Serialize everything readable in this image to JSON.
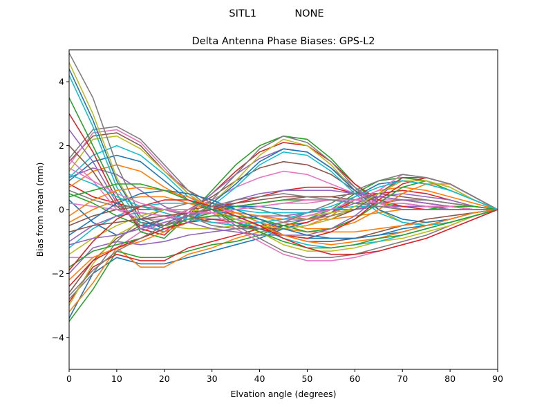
{
  "figure": {
    "suptitle": "SITL1            NONE"
  },
  "chart_data": {
    "type": "line",
    "title": "Delta Antenna Phase Biases: GPS-L2",
    "xlabel": "Elvation angle (degrees)",
    "ylabel": "Bias from mean (mm)",
    "xlim": [
      0,
      90
    ],
    "ylim": [
      -5,
      5
    ],
    "xticks": [
      0,
      10,
      20,
      30,
      40,
      50,
      60,
      70,
      80,
      90
    ],
    "yticks": [
      -4,
      -2,
      0,
      2,
      4
    ],
    "ytick_labels": [
      "−4",
      "−2",
      "0",
      "2",
      "4"
    ],
    "grid": false,
    "legend": "none",
    "colors": [
      "#1f77b4",
      "#ff7f0e",
      "#2ca02c",
      "#d62728",
      "#9467bd",
      "#8c564b",
      "#e377c2",
      "#7f7f7f",
      "#bcbd22",
      "#17becf"
    ],
    "x": [
      0,
      5,
      10,
      15,
      20,
      25,
      30,
      35,
      40,
      45,
      50,
      55,
      60,
      65,
      70,
      75,
      80,
      85,
      90
    ],
    "series": [
      {
        "values": [
          -3.4,
          -2.0,
          -1.5,
          -1.7,
          -1.7,
          -1.5,
          -1.3,
          -1.1,
          -0.9,
          -0.6,
          -0.4,
          -0.1,
          0.4,
          0.8,
          0.9,
          0.8,
          0.6,
          0.3,
          0.0
        ]
      },
      {
        "values": [
          -3.2,
          -2.3,
          -1.2,
          -1.8,
          -1.8,
          -1.4,
          -1.2,
          -0.9,
          -0.7,
          -0.6,
          -0.5,
          -0.2,
          0.3,
          0.6,
          0.7,
          0.6,
          0.4,
          0.2,
          0.0
        ]
      },
      {
        "values": [
          -3.5,
          -2.5,
          -1.3,
          -1.5,
          -1.5,
          -1.3,
          -1.1,
          -1.0,
          -0.8,
          -0.5,
          -0.3,
          0.0,
          0.5,
          0.9,
          1.0,
          0.9,
          0.6,
          0.3,
          0.0
        ]
      },
      {
        "values": [
          -2.9,
          -1.8,
          -1.4,
          -1.6,
          -1.6,
          -1.2,
          -1.0,
          -0.8,
          -0.6,
          -0.5,
          -0.4,
          -0.1,
          0.3,
          0.5,
          0.6,
          0.5,
          0.3,
          0.1,
          0.0
        ]
      },
      {
        "values": [
          -2.0,
          -1.2,
          -1.0,
          -1.1,
          -1.0,
          -0.8,
          -0.7,
          -0.6,
          -0.5,
          -0.4,
          -0.3,
          -0.1,
          0.2,
          0.4,
          0.5,
          0.4,
          0.3,
          0.1,
          0.0
        ]
      },
      {
        "values": [
          -2.6,
          -1.6,
          -0.9,
          -0.5,
          -0.3,
          -0.1,
          0.0,
          0.1,
          0.2,
          0.3,
          0.4,
          0.4,
          0.5,
          0.5,
          0.4,
          0.3,
          0.2,
          0.1,
          0.0
        ]
      },
      {
        "values": [
          -1.5,
          -1.5,
          -1.2,
          -0.7,
          -0.4,
          -0.2,
          -0.1,
          0.0,
          0.1,
          0.2,
          0.2,
          0.3,
          0.3,
          0.3,
          0.3,
          0.2,
          0.1,
          0.1,
          0.0
        ]
      },
      {
        "values": [
          -2.8,
          -2.0,
          -1.0,
          -0.3,
          0.0,
          0.2,
          0.2,
          0.1,
          0.0,
          -0.2,
          -0.3,
          -0.2,
          0.0,
          0.2,
          0.3,
          0.3,
          0.2,
          0.1,
          0.0
        ]
      },
      {
        "values": [
          -3.0,
          -1.7,
          -0.8,
          -0.4,
          -0.5,
          -0.6,
          -0.6,
          -0.5,
          -0.4,
          -0.3,
          -0.2,
          -0.1,
          0.0,
          0.1,
          0.1,
          0.1,
          0.1,
          0.0,
          0.0
        ]
      },
      {
        "values": [
          -1.2,
          -0.6,
          -0.2,
          0.1,
          0.2,
          0.2,
          0.1,
          0.0,
          -0.1,
          -0.1,
          -0.1,
          0.0,
          0.1,
          0.1,
          0.1,
          0.1,
          0.1,
          0.0,
          0.0
        ]
      },
      {
        "values": [
          0.3,
          -0.4,
          -0.8,
          -0.6,
          -0.3,
          0.0,
          0.1,
          0.1,
          0.1,
          0.0,
          0.0,
          0.0,
          0.0,
          0.1,
          0.1,
          0.1,
          0.0,
          0.0,
          0.0
        ]
      },
      {
        "values": [
          -0.4,
          0.0,
          0.3,
          0.4,
          0.4,
          0.2,
          0.0,
          -0.1,
          -0.2,
          -0.3,
          -0.3,
          -0.3,
          -0.2,
          -0.1,
          0.0,
          0.0,
          0.0,
          0.0,
          0.0
        ]
      },
      {
        "values": [
          0.5,
          0.2,
          -0.2,
          -0.5,
          -0.5,
          -0.3,
          -0.1,
          0.1,
          0.2,
          0.3,
          0.3,
          0.3,
          0.2,
          0.2,
          0.1,
          0.1,
          0.0,
          0.0,
          0.0
        ]
      },
      {
        "values": [
          0.8,
          0.4,
          0.2,
          0.0,
          0.0,
          0.0,
          0.1,
          0.2,
          0.4,
          0.6,
          0.7,
          0.7,
          0.5,
          0.4,
          0.3,
          0.2,
          0.1,
          0.0,
          0.0
        ]
      },
      {
        "values": [
          1.0,
          1.3,
          1.1,
          0.6,
          0.1,
          -0.2,
          -0.3,
          -0.3,
          -0.2,
          -0.2,
          -0.1,
          0.0,
          0.0,
          0.1,
          0.1,
          0.1,
          0.0,
          0.0,
          0.0
        ]
      },
      {
        "values": [
          1.5,
          2.3,
          2.4,
          2.0,
          1.2,
          0.6,
          0.2,
          -0.1,
          -0.4,
          -0.8,
          -1.0,
          -1.0,
          -0.9,
          -0.7,
          -0.5,
          -0.3,
          -0.2,
          -0.1,
          0.0
        ]
      },
      {
        "values": [
          1.4,
          2.4,
          2.5,
          2.1,
          1.3,
          0.5,
          -0.1,
          -0.6,
          -1.0,
          -1.4,
          -1.6,
          -1.6,
          -1.5,
          -1.3,
          -1.1,
          -0.9,
          -0.6,
          -0.3,
          0.0
        ]
      },
      {
        "values": [
          1.6,
          2.5,
          2.6,
          2.2,
          1.4,
          0.6,
          0.0,
          -0.5,
          -0.9,
          -1.3,
          -1.5,
          -1.5,
          -1.4,
          -1.2,
          -1.0,
          -0.8,
          -0.5,
          -0.2,
          0.0
        ]
      },
      {
        "values": [
          1.2,
          2.2,
          2.3,
          1.9,
          1.2,
          0.5,
          0.0,
          -0.4,
          -0.7,
          -1.1,
          -1.3,
          -1.3,
          -1.2,
          -1.0,
          -0.9,
          -0.7,
          -0.5,
          -0.2,
          0.0
        ]
      },
      {
        "values": [
          1.0,
          1.7,
          2.0,
          1.7,
          1.1,
          0.4,
          0.0,
          -0.3,
          -0.6,
          -0.9,
          -1.1,
          -1.2,
          -1.1,
          -1.0,
          -0.8,
          -0.6,
          -0.4,
          -0.2,
          0.0
        ]
      },
      {
        "values": [
          0.9,
          1.5,
          1.7,
          1.5,
          0.9,
          0.3,
          0.0,
          -0.2,
          -0.5,
          -0.8,
          -0.9,
          -0.9,
          -0.9,
          -0.8,
          -0.7,
          -0.5,
          -0.3,
          -0.1,
          0.0
        ]
      },
      {
        "values": [
          0.7,
          1.2,
          1.4,
          1.2,
          0.7,
          0.3,
          0.1,
          -0.1,
          -0.4,
          -0.6,
          -0.7,
          -0.7,
          -0.7,
          -0.6,
          -0.5,
          -0.4,
          -0.3,
          -0.1,
          0.0
        ]
      },
      {
        "values": [
          3.5,
          2.0,
          0.5,
          -0.7,
          -0.9,
          -0.2,
          0.6,
          1.4,
          2.0,
          2.3,
          2.2,
          1.6,
          0.8,
          0.2,
          0.0,
          0.0,
          0.1,
          0.1,
          0.0
        ]
      },
      {
        "values": [
          3.0,
          1.8,
          0.3,
          -0.6,
          -0.8,
          -0.1,
          0.5,
          1.2,
          1.8,
          2.1,
          2.0,
          1.5,
          0.8,
          0.3,
          0.1,
          0.0,
          0.0,
          0.0,
          0.0
        ]
      },
      {
        "values": [
          2.5,
          1.5,
          0.2,
          -0.5,
          -0.7,
          -0.1,
          0.5,
          1.1,
          1.6,
          1.9,
          1.8,
          1.3,
          0.7,
          0.2,
          0.0,
          0.0,
          0.0,
          0.0,
          0.0
        ]
      },
      {
        "values": [
          2.0,
          1.2,
          0.1,
          -0.4,
          -0.5,
          0.0,
          0.4,
          0.9,
          1.3,
          1.5,
          1.4,
          1.1,
          0.6,
          0.2,
          0.0,
          0.0,
          0.0,
          0.0,
          0.0
        ]
      },
      {
        "values": [
          1.6,
          0.9,
          0.0,
          -0.3,
          -0.3,
          0.0,
          0.3,
          0.7,
          1.0,
          1.2,
          1.1,
          0.8,
          0.5,
          0.2,
          0.0,
          0.0,
          0.0,
          0.0,
          0.0
        ]
      },
      {
        "values": [
          4.9,
          3.5,
          1.4,
          -0.2,
          -0.5,
          -0.2,
          0.3,
          1.1,
          1.9,
          2.3,
          2.1,
          1.5,
          0.7,
          0.0,
          -0.4,
          -0.5,
          -0.4,
          -0.2,
          0.0
        ]
      },
      {
        "values": [
          4.6,
          3.0,
          1.0,
          -0.3,
          -0.6,
          -0.3,
          0.2,
          0.9,
          1.7,
          2.2,
          2.0,
          1.4,
          0.6,
          0.0,
          -0.4,
          -0.5,
          -0.4,
          -0.2,
          0.0
        ]
      },
      {
        "values": [
          4.2,
          2.6,
          0.7,
          -0.4,
          -0.7,
          -0.4,
          0.1,
          0.7,
          1.4,
          1.8,
          1.7,
          1.2,
          0.5,
          -0.1,
          -0.4,
          -0.5,
          -0.4,
          -0.2,
          0.0
        ]
      },
      {
        "values": [
          4.4,
          2.8,
          0.9,
          -0.3,
          -0.6,
          -0.4,
          0.2,
          0.8,
          1.5,
          1.9,
          1.8,
          1.3,
          0.6,
          0.0,
          -0.3,
          -0.4,
          -0.3,
          -0.1,
          0.0
        ]
      },
      {
        "values": [
          -2.2,
          -1.5,
          -1.2,
          -1.0,
          -0.7,
          -0.4,
          -0.2,
          -0.1,
          -0.2,
          -0.4,
          -0.6,
          -0.6,
          -0.4,
          0.0,
          0.5,
          0.8,
          0.8,
          0.4,
          0.0
        ]
      },
      {
        "values": [
          -1.8,
          -1.3,
          -1.1,
          -0.9,
          -0.6,
          -0.3,
          -0.2,
          -0.2,
          -0.3,
          -0.5,
          -0.7,
          -0.6,
          -0.3,
          0.2,
          0.7,
          0.9,
          0.7,
          0.3,
          0.0
        ]
      },
      {
        "values": [
          -2.4,
          -1.6,
          -1.2,
          -0.9,
          -0.6,
          -0.4,
          -0.3,
          -0.4,
          -0.6,
          -0.8,
          -0.9,
          -0.7,
          -0.3,
          0.3,
          0.8,
          1.0,
          0.8,
          0.4,
          0.0
        ]
      },
      {
        "values": [
          -1.0,
          -0.5,
          -0.2,
          -0.1,
          -0.2,
          -0.4,
          -0.6,
          -0.7,
          -0.8,
          -0.8,
          -0.8,
          -0.6,
          -0.2,
          0.4,
          1.0,
          1.0,
          0.8,
          0.4,
          0.0
        ]
      },
      {
        "values": [
          -0.5,
          -0.2,
          0.0,
          0.1,
          0.0,
          -0.2,
          -0.4,
          -0.5,
          -0.6,
          -0.6,
          -0.5,
          -0.3,
          0.0,
          0.5,
          1.0,
          1.0,
          0.8,
          0.4,
          0.0
        ]
      },
      {
        "values": [
          0.2,
          0.1,
          0.0,
          -0.1,
          -0.2,
          -0.3,
          -0.4,
          -0.4,
          -0.4,
          -0.3,
          -0.2,
          0.0,
          0.3,
          0.6,
          1.1,
          1.0,
          0.8,
          0.4,
          0.0
        ]
      },
      {
        "values": [
          0.6,
          0.3,
          0.1,
          0.1,
          0.0,
          -0.2,
          -0.5,
          -0.6,
          -0.6,
          -0.4,
          -0.1,
          0.2,
          0.6,
          0.9,
          1.1,
          1.0,
          0.8,
          0.4,
          0.0
        ]
      },
      {
        "values": [
          -1.4,
          -0.9,
          -0.5,
          -0.2,
          0.0,
          0.0,
          -0.1,
          -0.3,
          -0.5,
          -0.6,
          -0.5,
          -0.3,
          0.1,
          0.5,
          0.9,
          0.9,
          0.7,
          0.3,
          0.0
        ]
      },
      {
        "values": [
          1.1,
          0.8,
          0.4,
          0.1,
          -0.1,
          -0.3,
          -0.4,
          -0.5,
          -0.4,
          -0.3,
          -0.1,
          0.1,
          0.4,
          0.7,
          0.9,
          0.8,
          0.6,
          0.3,
          0.0
        ]
      },
      {
        "values": [
          -0.8,
          -0.3,
          0.2,
          0.5,
          0.6,
          0.5,
          0.3,
          0.0,
          -0.3,
          -0.6,
          -0.8,
          -0.9,
          -0.9,
          -0.8,
          -0.6,
          -0.5,
          -0.3,
          -0.1,
          0.0
        ]
      },
      {
        "values": [
          -0.2,
          0.3,
          0.6,
          0.7,
          0.6,
          0.4,
          0.1,
          -0.2,
          -0.5,
          -0.8,
          -1.0,
          -1.1,
          -1.0,
          -0.9,
          -0.7,
          -0.5,
          -0.3,
          -0.1,
          0.0
        ]
      },
      {
        "values": [
          0.4,
          0.6,
          0.8,
          0.8,
          0.6,
          0.3,
          0.0,
          -0.4,
          -0.7,
          -1.0,
          -1.2,
          -1.2,
          -1.1,
          -0.9,
          -0.8,
          -0.6,
          -0.4,
          -0.2,
          0.0
        ]
      },
      {
        "values": [
          -1.9,
          -1.0,
          -0.3,
          0.1,
          0.3,
          0.3,
          0.1,
          -0.2,
          -0.5,
          -0.9,
          -1.2,
          -1.4,
          -1.4,
          -1.3,
          -1.1,
          -0.9,
          -0.6,
          -0.3,
          0.0
        ]
      },
      {
        "values": [
          -1.1,
          -0.9,
          -0.8,
          -0.6,
          -0.4,
          -0.2,
          0.0,
          0.3,
          0.5,
          0.6,
          0.6,
          0.6,
          0.5,
          0.4,
          0.3,
          0.2,
          0.1,
          0.0,
          0.0
        ]
      },
      {
        "values": [
          -0.7,
          -0.5,
          -0.4,
          -0.3,
          -0.2,
          -0.1,
          0.0,
          0.2,
          0.3,
          0.4,
          0.4,
          0.4,
          0.3,
          0.2,
          0.2,
          0.1,
          0.1,
          0.0,
          0.0
        ]
      },
      {
        "values": [
          1.3,
          0.9,
          0.5,
          0.2,
          0.0,
          -0.1,
          -0.1,
          0.0,
          0.1,
          0.2,
          0.3,
          0.3,
          0.3,
          0.2,
          0.2,
          0.1,
          0.1,
          0.0,
          0.0
        ]
      },
      {
        "values": [
          -2.7,
          -1.9,
          -1.3,
          -0.9,
          -0.5,
          -0.2,
          0.1,
          0.3,
          0.4,
          0.5,
          0.4,
          0.3,
          0.2,
          0.1,
          0.0,
          0.0,
          0.0,
          0.0,
          0.0
        ]
      }
    ]
  }
}
